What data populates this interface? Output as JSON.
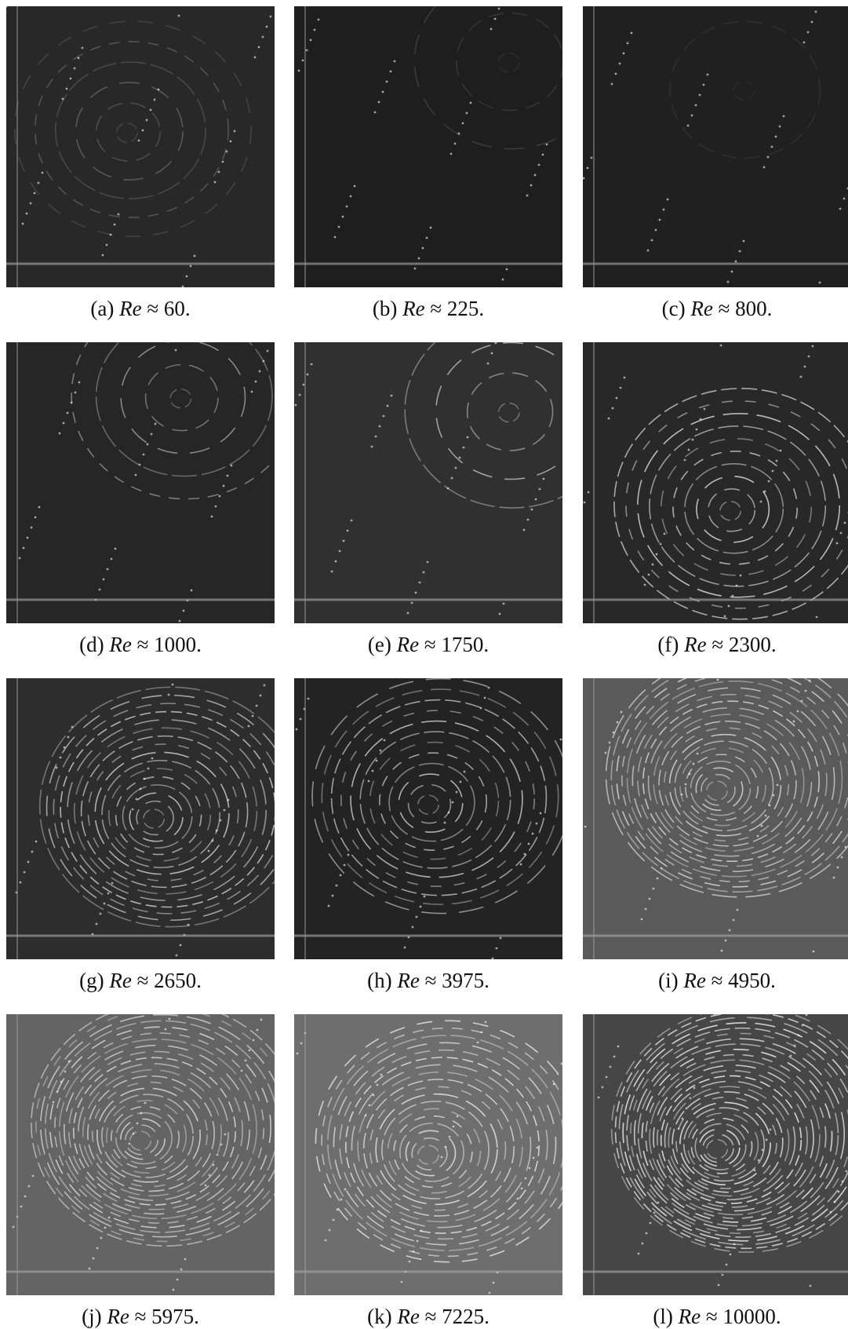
{
  "figure": {
    "panels": [
      {
        "label": "(a)",
        "symbol": "Re",
        "text": "≈ 60."
      },
      {
        "label": "(b)",
        "symbol": "Re",
        "text": "≈ 225."
      },
      {
        "label": "(c)",
        "symbol": "Re",
        "text": "≈ 800."
      },
      {
        "label": "(d)",
        "symbol": "Re",
        "text": "≈ 1000."
      },
      {
        "label": "(e)",
        "symbol": "Re",
        "text": "≈ 1750."
      },
      {
        "label": "(f)",
        "symbol": "Re",
        "text": "≈ 2300."
      },
      {
        "label": "(g)",
        "symbol": "Re",
        "text": "≈ 2650."
      },
      {
        "label": "(h)",
        "symbol": "Re",
        "text": "≈ 3975."
      },
      {
        "label": "(i)",
        "symbol": "Re",
        "text": "≈ 4950."
      },
      {
        "label": "(j)",
        "symbol": "Re",
        "text": "≈ 5975."
      },
      {
        "label": "(k)",
        "symbol": "Re",
        "text": "≈ 7225."
      },
      {
        "label": "(l)",
        "symbol": "Re",
        "text": "≈ 10000."
      }
    ]
  }
}
